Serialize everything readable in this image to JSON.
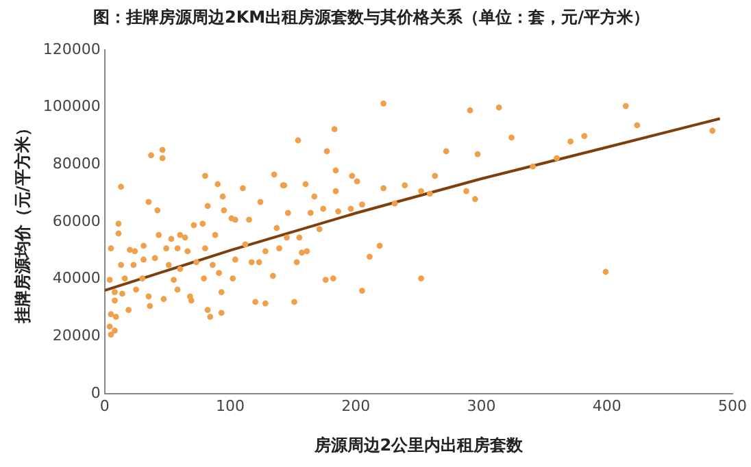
{
  "chart_data": {
    "type": "scatter",
    "title": "图：挂牌房源周边2KM出租房源套数与其价格关系（单位：套，元/平方米）",
    "xlabel": "房源周边2公里内出租房套数",
    "ylabel": "挂牌房源均价（元/平方米）",
    "xlim": [
      0,
      500
    ],
    "xticks": [
      0,
      100,
      200,
      300,
      400,
      500
    ],
    "ylim": [
      0,
      120000
    ],
    "yticks": [
      0,
      20000,
      40000,
      60000,
      80000,
      100000,
      120000
    ],
    "grid": false,
    "legend": false,
    "marker": "circle",
    "series": [
      {
        "color": "#f0a04b",
        "x": [
          291,
          314,
          324,
          297,
          288,
          295,
          341,
          360,
          371,
          382,
          415,
          424,
          399,
          484,
          222,
          183,
          154,
          177,
          272,
          135,
          184,
          197,
          201,
          160,
          143,
          184,
          222,
          239,
          263,
          167,
          231,
          252,
          259,
          146,
          164,
          174,
          186,
          196,
          205,
          137,
          171,
          145,
          155,
          139,
          157,
          161,
          153,
          134,
          219,
          211,
          176,
          182,
          205,
          252,
          151,
          37,
          46,
          46,
          13,
          80,
          90,
          110,
          142,
          94,
          35,
          42,
          11,
          11,
          43,
          82,
          95,
          101,
          104,
          115,
          124,
          71,
          78,
          60,
          64,
          53,
          88,
          5,
          20,
          24,
          31,
          49,
          58,
          66,
          80,
          112,
          128,
          13,
          23,
          31,
          40,
          51,
          60,
          73,
          86,
          104,
          117,
          4,
          16,
          30,
          55,
          79,
          91,
          102,
          123,
          8,
          14,
          25,
          35,
          58,
          68,
          93,
          8,
          19,
          36,
          47,
          69,
          82,
          84,
          93,
          120,
          128,
          5,
          9,
          4,
          8,
          5
        ],
        "values": [
          98900,
          99900,
          89400,
          83600,
          70700,
          67900,
          79300,
          82200,
          88000,
          89900,
          100400,
          93700,
          42500,
          91800,
          101300,
          92300,
          88400,
          84600,
          84600,
          76500,
          77900,
          76000,
          74100,
          73100,
          72700,
          70700,
          71700,
          72700,
          76000,
          68800,
          66400,
          70700,
          69800,
          63100,
          63100,
          64500,
          63600,
          64500,
          66000,
          57800,
          57400,
          54500,
          54500,
          50700,
          49200,
          49700,
          45900,
          41100,
          51600,
          47800,
          39700,
          40200,
          35900,
          40200,
          32000,
          83200,
          85100,
          82200,
          72200,
          76000,
          73100,
          71700,
          72700,
          68800,
          66900,
          64000,
          59300,
          55900,
          55400,
          65500,
          64000,
          61200,
          60700,
          60700,
          66900,
          58800,
          59300,
          55400,
          54500,
          54000,
          55400,
          50700,
          50200,
          49700,
          51600,
          50700,
          50700,
          49700,
          50700,
          52100,
          49700,
          44900,
          44900,
          46800,
          47300,
          44900,
          43500,
          45900,
          44900,
          46800,
          45900,
          39700,
          40200,
          40200,
          39700,
          40200,
          42100,
          40200,
          45900,
          35400,
          34900,
          36300,
          33900,
          36300,
          33900,
          35400,
          32500,
          29200,
          30600,
          33000,
          32500,
          29200,
          26800,
          28200,
          32000,
          31500,
          27700,
          26800,
          23400,
          22000,
          20600
        ]
      },
      {
        "type": "line",
        "color": "#7f3f0c",
        "marker": "none",
        "x": [
          0,
          50,
          100,
          200,
          300,
          400,
          490
        ],
        "values": [
          36000,
          43000,
          50000,
          63000,
          75000,
          86000,
          96000
        ]
      }
    ]
  }
}
